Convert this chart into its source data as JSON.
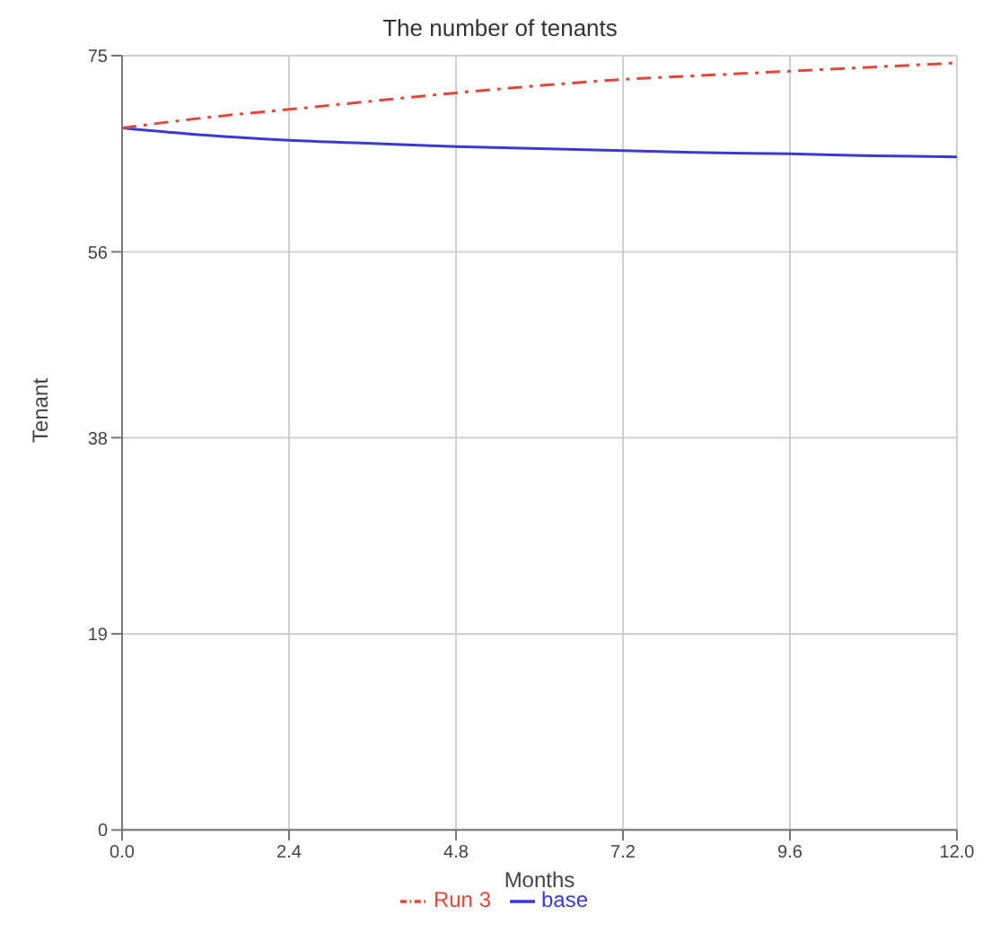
{
  "chart_data": {
    "type": "line",
    "title": "The number of tenants",
    "xlabel": "Months",
    "ylabel": "Tenant",
    "x": [
      0,
      1.2,
      2.4,
      3.6,
      4.8,
      6,
      7.2,
      8.4,
      9.6,
      10.8,
      12
    ],
    "series": [
      {
        "name": "base",
        "color": "#3a3ad0",
        "line_style": "solid",
        "values": [
          68,
          67.3,
          66.8,
          66.5,
          66.2,
          66,
          65.8,
          65.6,
          65.5,
          65.3,
          65.2
        ]
      },
      {
        "name": "Run 3",
        "color": "#e0483c",
        "line_style": "dashed",
        "values": [
          68,
          69,
          69.8,
          70.6,
          71.4,
          72.1,
          72.7,
          73.1,
          73.5,
          73.9,
          74.3
        ]
      }
    ],
    "xlim": [
      0,
      12
    ],
    "xticks": [
      {
        "value": 0,
        "label": "0.0"
      },
      2.4,
      4.8,
      7.2,
      9.6,
      {
        "value": 12,
        "label": "12.0"
      }
    ],
    "ylim": [
      0,
      75
    ],
    "yticks": [
      0,
      19,
      38,
      56,
      75
    ],
    "grid": true,
    "legend": "bottom",
    "marker": "none"
  }
}
